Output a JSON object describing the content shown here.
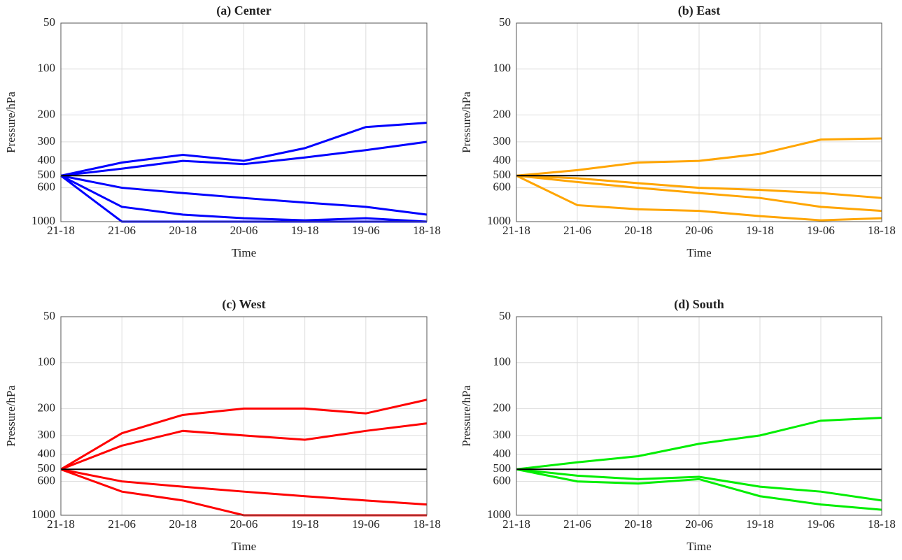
{
  "chart_data": [
    {
      "type": "line",
      "title": "(a) Center",
      "xlabel": "Time",
      "ylabel": "Pressure/hPa",
      "log_y": true,
      "grid": true,
      "categories": [
        "21-18",
        "21-06",
        "20-18",
        "20-06",
        "19-18",
        "19-06",
        "18-18"
      ],
      "ylim": [
        1000,
        50
      ],
      "yticks": [
        50,
        100,
        200,
        300,
        400,
        500,
        600,
        1000
      ],
      "series": [
        {
          "color": "#0000ff",
          "values": [
            500,
            410,
            365,
            400,
            330,
            240,
            225
          ]
        },
        {
          "color": "#0000ff",
          "values": [
            500,
            450,
            400,
            420,
            380,
            340,
            300
          ]
        },
        {
          "color": "#0000ff",
          "values": [
            500,
            600,
            650,
            700,
            750,
            800,
            900
          ]
        },
        {
          "color": "#0000ff",
          "values": [
            500,
            800,
            900,
            950,
            980,
            950,
            1000
          ]
        },
        {
          "color": "#0000ff",
          "values": [
            500,
            1000,
            1000,
            1000,
            1000,
            1000,
            1000
          ]
        },
        {
          "color": "#000000",
          "values": [
            500,
            500,
            500,
            500,
            500,
            500,
            500
          ]
        }
      ]
    },
    {
      "type": "line",
      "title": "(b) East",
      "xlabel": "Time",
      "ylabel": "Pressure/hPa",
      "log_y": true,
      "grid": true,
      "categories": [
        "21-18",
        "21-06",
        "20-18",
        "20-06",
        "19-18",
        "19-06",
        "18-18"
      ],
      "ylim": [
        1000,
        50
      ],
      "yticks": [
        50,
        100,
        200,
        300,
        400,
        500,
        600,
        1000
      ],
      "series": [
        {
          "color": "#ffa500",
          "values": [
            500,
            460,
            410,
            400,
            360,
            290,
            285
          ]
        },
        {
          "color": "#ffa500",
          "values": [
            500,
            520,
            560,
            600,
            620,
            650,
            700
          ]
        },
        {
          "color": "#ffa500",
          "values": [
            500,
            550,
            600,
            650,
            700,
            800,
            850
          ]
        },
        {
          "color": "#ffa500",
          "values": [
            500,
            780,
            830,
            850,
            920,
            980,
            950
          ]
        },
        {
          "color": "#000000",
          "values": [
            500,
            500,
            500,
            500,
            500,
            500,
            500
          ]
        }
      ]
    },
    {
      "type": "line",
      "title": "(c) West",
      "xlabel": "Time",
      "ylabel": "Pressure/hPa",
      "log_y": true,
      "grid": true,
      "categories": [
        "21-18",
        "21-06",
        "20-18",
        "20-06",
        "19-18",
        "19-06",
        "18-18"
      ],
      "ylim": [
        1000,
        50
      ],
      "yticks": [
        50,
        100,
        200,
        300,
        400,
        500,
        600,
        1000
      ],
      "series": [
        {
          "color": "#ff0000",
          "values": [
            500,
            290,
            220,
            200,
            200,
            215,
            175
          ]
        },
        {
          "color": "#ff0000",
          "values": [
            500,
            350,
            280,
            300,
            320,
            280,
            250
          ]
        },
        {
          "color": "#ff0000",
          "values": [
            500,
            600,
            650,
            700,
            750,
            800,
            850
          ]
        },
        {
          "color": "#ff0000",
          "values": [
            500,
            700,
            800,
            1000,
            1000,
            1000,
            1000
          ]
        },
        {
          "color": "#000000",
          "values": [
            500,
            500,
            500,
            500,
            500,
            500,
            500
          ]
        }
      ]
    },
    {
      "type": "line",
      "title": "(d) South",
      "xlabel": "Time",
      "ylabel": "Pressure/hPa",
      "log_y": true,
      "grid": true,
      "categories": [
        "21-18",
        "21-06",
        "20-18",
        "20-06",
        "19-18",
        "19-06",
        "18-18"
      ],
      "ylim": [
        1000,
        50
      ],
      "yticks": [
        50,
        100,
        200,
        300,
        400,
        500,
        600,
        1000
      ],
      "series": [
        {
          "color": "#00ee00",
          "values": [
            500,
            450,
            410,
            340,
            300,
            240,
            230
          ]
        },
        {
          "color": "#00ee00",
          "values": [
            500,
            550,
            580,
            560,
            650,
            700,
            800
          ]
        },
        {
          "color": "#00ee00",
          "values": [
            500,
            600,
            620,
            580,
            750,
            850,
            920
          ]
        },
        {
          "color": "#000000",
          "values": [
            500,
            500,
            500,
            500,
            500,
            500,
            500
          ]
        }
      ]
    }
  ]
}
